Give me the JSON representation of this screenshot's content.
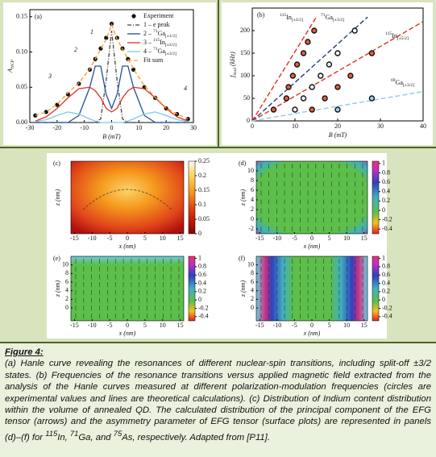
{
  "panel_a": {
    "label": "(a)",
    "ylabel": [
      {
        "text": "A"
      },
      {
        "text": "NCP",
        "pos": "sub"
      }
    ],
    "xlabel": "B (mT)",
    "xlim": [
      -30,
      30
    ],
    "xticks": [
      -30,
      -20,
      -10,
      0,
      10,
      20,
      30
    ],
    "ylim": [
      0,
      0.16
    ],
    "yticks": [
      {
        "value": 0,
        "label": "0.00"
      },
      {
        "value": 0.05,
        "label": "0.05"
      },
      {
        "value": 0.1,
        "label": "0.10"
      },
      {
        "value": 0.15,
        "label": "0.15"
      }
    ],
    "x": [
      -28,
      -24,
      -20,
      -16,
      -12,
      -8,
      -6,
      -4,
      -2,
      0,
      2,
      4,
      6,
      8,
      12,
      16,
      20,
      24,
      28
    ],
    "series": [
      {
        "name": [
          {
            "text": "Experiment"
          }
        ],
        "style": "points",
        "color": "#111111",
        "values": [
          0.01,
          0.015,
          0.025,
          0.04,
          0.055,
          0.075,
          0.09,
          0.105,
          0.12,
          0.14,
          0.12,
          0.105,
          0.09,
          0.075,
          0.05,
          0.035,
          0.02,
          0.012,
          0.005
        ]
      },
      {
        "name": [
          {
            "text": "1 – e peak"
          }
        ],
        "style": "dashdot",
        "color": "#444444",
        "values": [
          0,
          0,
          0,
          0,
          0,
          0,
          0,
          0.005,
          0.06,
          0.13,
          0.06,
          0.005,
          0,
          0,
          0,
          0,
          0,
          0,
          0
        ]
      },
      {
        "name": [
          {
            "text": "2 – "
          },
          {
            "text": "71",
            "pos": "sup"
          },
          {
            "text": "Ga"
          },
          {
            "text": "[±1/2]",
            "pos": "sub"
          }
        ],
        "style": "solid",
        "color": "#1f4e9c",
        "values": [
          0,
          0,
          0,
          0,
          0.01,
          0.05,
          0.08,
          0.08,
          0.04,
          0.02,
          0.04,
          0.08,
          0.08,
          0.05,
          0.01,
          0,
          0,
          0,
          0
        ]
      },
      {
        "name": [
          {
            "text": "3 – "
          },
          {
            "text": "115",
            "pos": "sup"
          },
          {
            "text": "In"
          },
          {
            "text": "[±3/2]",
            "pos": "sub"
          }
        ],
        "style": "solid",
        "color": "#e03020",
        "values": [
          0.002,
          0.008,
          0.02,
          0.035,
          0.048,
          0.05,
          0.045,
          0.035,
          0.02,
          0.015,
          0.02,
          0.035,
          0.045,
          0.05,
          0.048,
          0.035,
          0.02,
          0.008,
          0.002
        ]
      },
      {
        "name": [
          {
            "text": "4 – "
          },
          {
            "text": "71",
            "pos": "sup"
          },
          {
            "text": "Ga"
          },
          {
            "text": "[±3/2]",
            "pos": "sub"
          }
        ],
        "style": "solid",
        "color": "#7ec8e8",
        "values": [
          0.001,
          0.004,
          0.01,
          0.015,
          0.012,
          0.005,
          0.002,
          0,
          0,
          0,
          0,
          0,
          0.002,
          0.005,
          0.012,
          0.015,
          0.01,
          0.004,
          0.001
        ]
      },
      {
        "name": [
          {
            "text": "Fit sum"
          }
        ],
        "style": "dashed",
        "color": "#f0a030",
        "values": [
          0.01,
          0.015,
          0.026,
          0.042,
          0.056,
          0.076,
          0.09,
          0.104,
          0.118,
          0.139,
          0.118,
          0.104,
          0.09,
          0.076,
          0.052,
          0.036,
          0.021,
          0.012,
          0.005
        ]
      }
    ],
    "annotations": [
      "1",
      "2",
      "3",
      "4"
    ]
  },
  "panel_b": {
    "label": "(b)",
    "ylabel": [
      {
        "text": "f"
      },
      {
        "text": "mod",
        "pos": "sub"
      },
      {
        "text": " (kHz)"
      }
    ],
    "xlabel": "B (mT)",
    "xlim": [
      0,
      40
    ],
    "xticks": [
      0,
      10,
      20,
      30,
      40
    ],
    "ylim": [
      0,
      250
    ],
    "yticks": [
      0,
      50,
      100,
      150,
      200
    ],
    "lines": [
      {
        "label": [
          {
            "text": "115",
            "pos": "sup"
          },
          {
            "text": "In"
          },
          {
            "text": "[±3/2]",
            "pos": "sub"
          }
        ],
        "color": "#e03020",
        "x": [
          0,
          15
        ],
        "values": [
          0,
          230
        ]
      },
      {
        "label": [
          {
            "text": "71",
            "pos": "sup"
          },
          {
            "text": "Ga"
          },
          {
            "text": "[±3/2]",
            "pos": "sub"
          }
        ],
        "color": "#1f3f7a",
        "x": [
          0,
          27
        ],
        "values": [
          0,
          230
        ]
      },
      {
        "label": [
          {
            "text": "115",
            "pos": "sup"
          },
          {
            "text": "In"
          },
          {
            "text": "[±5/2]",
            "pos": "sub"
          }
        ],
        "color": "#e03020",
        "x": [
          0,
          40
        ],
        "values": [
          0,
          220
        ]
      },
      {
        "label": [
          {
            "text": "69",
            "pos": "sup"
          },
          {
            "text": "Ga"
          },
          {
            "text": "[±3/2]",
            "pos": "sub"
          }
        ],
        "color": "#8ccbe6",
        "x": [
          0,
          40
        ],
        "values": [
          0,
          65
        ]
      }
    ],
    "points": [
      {
        "color": "#e8603a",
        "x": [
          5,
          8,
          8.5,
          9.5,
          10.5,
          12,
          13,
          14.5
        ],
        "values": [
          25,
          50,
          75,
          100,
          125,
          150,
          175,
          200
        ]
      },
      {
        "color": "#f4f4f4",
        "x": [
          10,
          12,
          14,
          16,
          18,
          20,
          24
        ],
        "values": [
          25,
          50,
          75,
          100,
          125,
          150,
          200
        ]
      },
      {
        "color": "#e8603a",
        "x": [
          14,
          17,
          20,
          23,
          28
        ],
        "values": [
          25,
          50,
          75,
          100,
          150
        ]
      },
      {
        "color": "#9fd4ec",
        "x": [
          20,
          28
        ],
        "values": [
          25,
          50
        ]
      }
    ]
  },
  "maps": {
    "xlabel": "x (nm)",
    "zlabel": "z (nm)",
    "xlim": [
      -16,
      16
    ],
    "xticks": [
      -15,
      -10,
      -5,
      0,
      5,
      10,
      15
    ],
    "zlim": [
      -3,
      12
    ],
    "panels": [
      {
        "label": "(c)",
        "zticks": [],
        "colorbar": {
          "lim": [
            0,
            0.25
          ],
          "ticks": [
            0,
            0.05,
            0.1,
            0.15,
            0.2,
            0.25
          ]
        }
      },
      {
        "label": "(d)",
        "zticks": [
          -2,
          0,
          2,
          4,
          6,
          8,
          10
        ],
        "colorbar": {
          "lim": [
            -0.5,
            1.05
          ],
          "ticks": [
            -0.4,
            -0.2,
            0,
            0.2,
            0.4,
            0.6,
            0.8,
            1
          ]
        }
      },
      {
        "label": "(e)",
        "zticks": [
          0,
          2,
          4,
          6,
          8,
          10
        ],
        "colorbar": {
          "lim": [
            -0.5,
            1.05
          ],
          "ticks": [
            -0.4,
            -0.2,
            0,
            0.2,
            0.4,
            0.6,
            0.8,
            1
          ]
        }
      },
      {
        "label": "(f)",
        "zticks": [
          0,
          2,
          4,
          6,
          8,
          10
        ],
        "colorbar": {
          "lim": [
            -0.5,
            1.05
          ],
          "ticks": [
            -0.4,
            -0.2,
            0,
            0.2,
            0.4,
            0.6,
            0.8,
            1
          ]
        }
      }
    ]
  },
  "caption": {
    "title": "Figure 4:",
    "body": [
      {
        "text": "(a) Hanle curve revealing the resonances of different nuclear-spin transitions, including split-off ±3/2 states. (b) Frequencies of the resonance transitions versus applied magnetic field extracted from the analysis of the Hanle curves measured at different polarization-modulation frequencies (circles are experimental values and lines are theoretical calculations). (c) Distribution of Indium content distribution within the volume of annealed QD. The calculated distribution of the principal component of the EFG tensor (arrows) and the asymmetry parameter of EFG tensor (surface plots) are represented in panels (d)–(f) for "
      },
      {
        "text": "115",
        "pos": "sup"
      },
      {
        "text": "In, "
      },
      {
        "text": "71",
        "pos": "sup"
      },
      {
        "text": "Ga, and "
      },
      {
        "text": "75",
        "pos": "sup"
      },
      {
        "text": "As, respectively. Adapted from [P11]."
      }
    ]
  }
}
